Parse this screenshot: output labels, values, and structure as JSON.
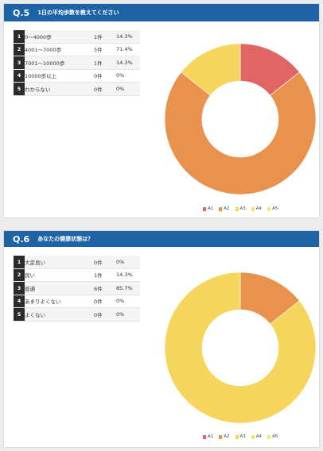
{
  "questions": [
    {
      "num": "Q.5",
      "title": "1日の平均歩数を教えてください",
      "rows": [
        {
          "idx": "1",
          "label": "0〜4000歩",
          "count": "1件",
          "pct": "14.3%"
        },
        {
          "idx": "2",
          "label": "4001〜7000歩",
          "count": "5件",
          "pct": "71.4%"
        },
        {
          "idx": "3",
          "label": "7001〜10000歩",
          "count": "1件",
          "pct": "14.3%"
        },
        {
          "idx": "4",
          "label": "10000歩以上",
          "count": "0件",
          "pct": "0%"
        },
        {
          "idx": "5",
          "label": "わからない",
          "count": "0件",
          "pct": "0%"
        }
      ],
      "legend": [
        "A1",
        "A2",
        "A3",
        "A4",
        "A5"
      ]
    },
    {
      "num": "Q.6",
      "title": "あなたの健康状態は？",
      "rows": [
        {
          "idx": "1",
          "label": "大変良い",
          "count": "0件",
          "pct": "0%"
        },
        {
          "idx": "2",
          "label": "良い",
          "count": "1件",
          "pct": "14.3%"
        },
        {
          "idx": "3",
          "label": "普通",
          "count": "6件",
          "pct": "85.7%"
        },
        {
          "idx": "4",
          "label": "あまりよくない",
          "count": "0件",
          "pct": "0%"
        },
        {
          "idx": "5",
          "label": "よくない",
          "count": "0件",
          "pct": "0%"
        }
      ],
      "legend": [
        "A1",
        "A2",
        "A3",
        "A4",
        "A5"
      ]
    }
  ],
  "colors": {
    "header": "#1e63a6",
    "A1": "#e06565",
    "A2": "#e8924e",
    "A3": "#f5d55c",
    "A4": "#f6e06f",
    "A5": "#f3ea7a"
  },
  "chart_data": [
    {
      "type": "pie",
      "title": "1日の平均歩数を教えてください",
      "categories": [
        "A1",
        "A2",
        "A3",
        "A4",
        "A5"
      ],
      "values": [
        14.3,
        71.4,
        14.3,
        0,
        0
      ]
    },
    {
      "type": "pie",
      "title": "あなたの健康状態は？",
      "categories": [
        "A1",
        "A2",
        "A3",
        "A4",
        "A5"
      ],
      "values": [
        0,
        14.3,
        85.7,
        0,
        0
      ]
    }
  ]
}
